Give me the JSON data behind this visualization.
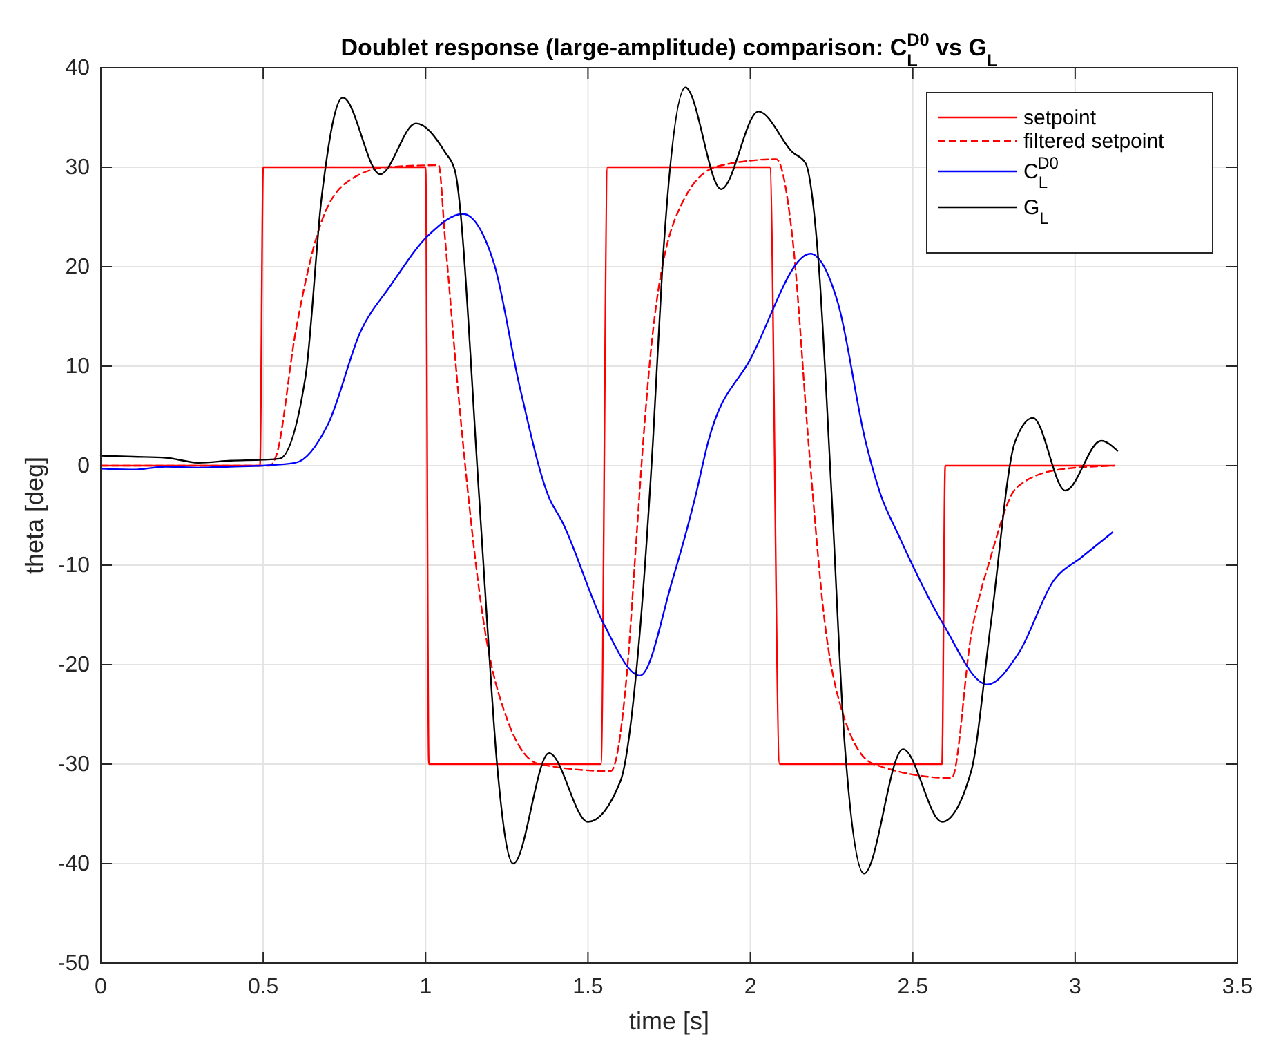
{
  "chart_data": {
    "type": "line",
    "title": "Doublet response (large-amplitude) comparison: C$_{L}$$^{D0}$ vs G$_{L}$",
    "xlabel": "time [s]",
    "ylabel": "theta [deg]",
    "xlim": [
      0,
      3.5
    ],
    "xticks": [
      0,
      0.5,
      1,
      1.5,
      2,
      2.5,
      3,
      3.5
    ],
    "ylim": [
      -50,
      40
    ],
    "yticks": [
      -50,
      -40,
      -30,
      -20,
      -10,
      0,
      10,
      20,
      30,
      40
    ],
    "grid": true,
    "legend": "top right",
    "series": [
      {
        "name": "setpoint",
        "color": "#ff0000",
        "line_style": "solid",
        "x": [
          0,
          0.49,
          0.5,
          1.0,
          1.01,
          1.54,
          1.56,
          2.06,
          2.09,
          2.59,
          2.6,
          3.12
        ],
        "values": [
          0,
          0,
          30,
          30,
          -30,
          -30,
          30,
          30,
          -30,
          -30,
          0,
          0
        ]
      },
      {
        "name": "filtered setpoint",
        "color": "#ff0000",
        "line_style": "dashed",
        "x": [
          0,
          0.52,
          0.54,
          0.6,
          0.67,
          0.75,
          0.88,
          1.04,
          1.06,
          1.11,
          1.18,
          1.25,
          1.35,
          1.57,
          1.62,
          1.65,
          1.67,
          1.7,
          1.79,
          1.9,
          2.08,
          2.13,
          2.18,
          2.23,
          2.28,
          2.38,
          2.62,
          2.68,
          2.74,
          2.82,
          2.95,
          3.12
        ],
        "values": [
          0,
          0,
          1,
          13.5,
          23.6,
          28.3,
          30,
          30.2,
          22.8,
          4,
          -16,
          -25.4,
          -30,
          -30.7,
          -20.8,
          -6.9,
          2.4,
          13.5,
          26.4,
          30.1,
          30.8,
          22.8,
          1.9,
          -16,
          -24.4,
          -30,
          -31.4,
          -17,
          -9.2,
          -2.2,
          -0.4,
          0
        ]
      },
      {
        "name": "C$_{L}$$^{D0}$",
        "color": "#0000ff",
        "line_style": "solid",
        "x": [
          0,
          0.1,
          0.2,
          0.3,
          0.4,
          0.5,
          0.6,
          0.7,
          0.8,
          0.89,
          1.01,
          1.115,
          1.21,
          1.29,
          1.38,
          1.42,
          1.55,
          1.66,
          1.76,
          1.83,
          1.87,
          2.0,
          2.185,
          2.27,
          2.355,
          2.4,
          2.455,
          2.595,
          2.73,
          2.825,
          2.935,
          3.02,
          3.115
        ],
        "values": [
          -0.3,
          -0.4,
          -0.1,
          -0.2,
          -0.1,
          0,
          0.3,
          4.2,
          13.5,
          18,
          23.2,
          25.3,
          20.4,
          7.9,
          -3.2,
          -5.6,
          -16,
          -21.1,
          -11.5,
          -3.2,
          2.4,
          10.7,
          21.3,
          16.3,
          2.4,
          -2.8,
          -6.9,
          -16,
          -22,
          -18.9,
          -11.5,
          -9.2,
          -6.7
        ]
      },
      {
        "name": "G$_{L}$",
        "color": "#000000",
        "line_style": "solid",
        "x": [
          0,
          0.1,
          0.2,
          0.3,
          0.4,
          0.5,
          0.55,
          0.63,
          0.68,
          0.745,
          0.86,
          0.97,
          1.06,
          1.09,
          1.165,
          1.19,
          1.22,
          1.27,
          1.38,
          1.5,
          1.6,
          1.655,
          1.7,
          1.73,
          1.8,
          1.91,
          2.025,
          2.13,
          2.17,
          2.21,
          2.25,
          2.29,
          2.35,
          2.47,
          2.59,
          2.68,
          2.74,
          2.815,
          2.87,
          2.97,
          3.08,
          3.13
        ],
        "values": [
          1,
          0.9,
          0.8,
          0.3,
          0.5,
          0.6,
          0.7,
          8.9,
          27,
          37,
          29.3,
          34.4,
          31.5,
          29.7,
          -3.2,
          -16,
          -30,
          -40,
          -28.9,
          -35.8,
          -31.7,
          -18.5,
          2.4,
          20.4,
          38,
          27.8,
          35.6,
          31.5,
          30.4,
          20.4,
          -2.8,
          -27.8,
          -41,
          -28.5,
          -35.8,
          -30.7,
          -16,
          2.4,
          4.8,
          -2.5,
          2.5,
          1.5
        ]
      }
    ]
  }
}
